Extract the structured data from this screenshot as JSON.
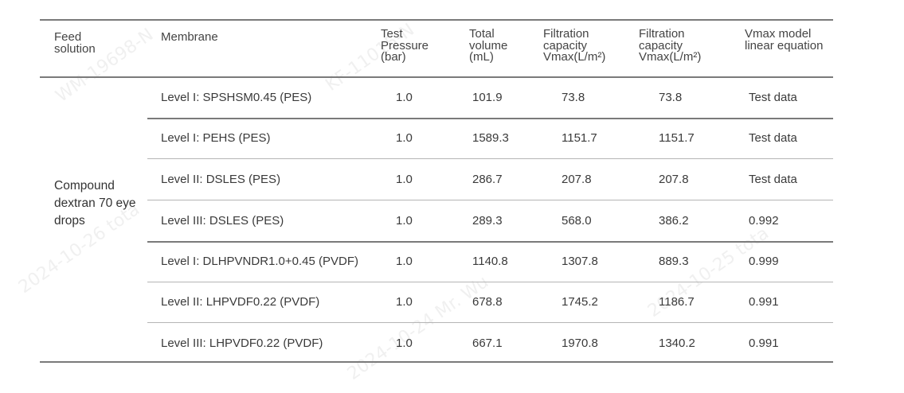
{
  "headers": {
    "feed": "Feed solution",
    "membrane": "Membrane",
    "pressure": "Test Pressure (bar)",
    "volume": "Total volume (mL)",
    "capacity1": "Filtration capacity Vmax(L/m²)",
    "capacity2": "Filtration capacity Vmax(L/m²)",
    "vmax_model": "Vmax model linear equation"
  },
  "feed_solution": "Compound dextran 70 eye drops",
  "rows": [
    {
      "membrane": "Level I: SPSHSM0.45 (PES)",
      "pressure": "1.0",
      "volume": "101.9",
      "capacity1": "73.8",
      "capacity2": "73.8",
      "model": "Test data"
    },
    {
      "membrane": "Level I: PEHS (PES)",
      "pressure": "1.0",
      "volume": "1589.3",
      "capacity1": "1151.7",
      "capacity2": "1151.7",
      "model": "Test data"
    },
    {
      "membrane": "Level II: DSLES (PES)",
      "pressure": "1.0",
      "volume": "286.7",
      "capacity1": "207.8",
      "capacity2": "207.8",
      "model": "Test data"
    },
    {
      "membrane": "Level III:  DSLES (PES)",
      "pressure": "1.0",
      "volume": "289.3",
      "capacity1": "568.0",
      "capacity2": "386.2",
      "model": "0.992"
    },
    {
      "membrane": "Level I: DLHPVNDR1.0+0.45 (PVDF)",
      "pressure": "1.0",
      "volume": "1140.8",
      "capacity1": "1307.8",
      "capacity2": "889.3",
      "model": "0.999"
    },
    {
      "membrane": "Level II: LHPVDF0.22 (PVDF)",
      "pressure": "1.0",
      "volume": "678.8",
      "capacity1": "1745.2",
      "capacity2": "1186.7",
      "model": "0.991"
    },
    {
      "membrane": "Level III:  LHPVDF0.22 (PVDF)",
      "pressure": "1.0",
      "volume": "667.1",
      "capacity1": "1970.8",
      "capacity2": "1340.2",
      "model": "0.991"
    }
  ]
}
